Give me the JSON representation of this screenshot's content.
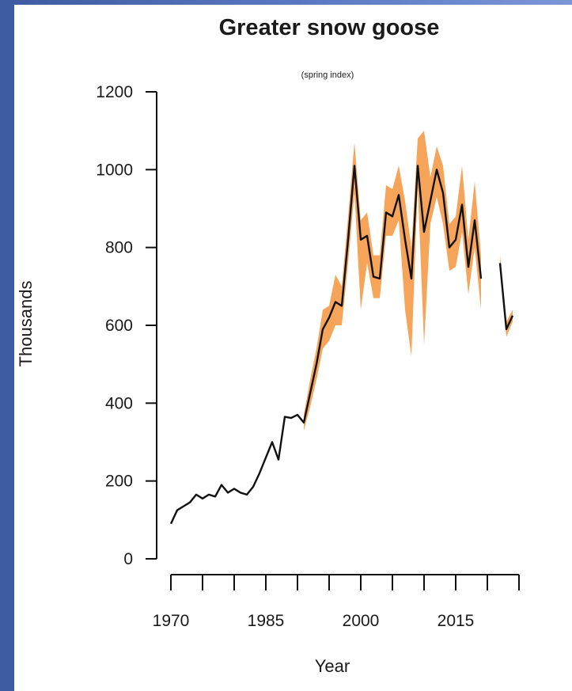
{
  "chart_data": {
    "type": "line",
    "title": "Greater snow goose",
    "subtitle": "(spring index)",
    "xlabel": "Year",
    "ylabel": "Thousands",
    "xlim": [
      1970,
      2023
    ],
    "ylim": [
      0,
      1200
    ],
    "y_ticks": [
      0,
      200,
      400,
      600,
      800,
      1000,
      1200
    ],
    "x_ticks": [
      1970,
      1975,
      1980,
      1985,
      1990,
      1995,
      2000,
      2005,
      2010,
      2015,
      2020,
      2025
    ],
    "x_tick_labels": [
      {
        "x": 1970,
        "label": "1970"
      },
      {
        "x": 1985,
        "label": "1985"
      },
      {
        "x": 2000,
        "label": "2000"
      },
      {
        "x": 2015,
        "label": "2015"
      }
    ],
    "grid": false,
    "colors": {
      "line": "#111111",
      "band": "#f6a45a"
    },
    "series": [
      {
        "values": [
          [
            1970,
            90
          ],
          [
            1971,
            125
          ],
          [
            1972,
            135
          ],
          [
            1973,
            145
          ],
          [
            1974,
            165
          ],
          [
            1975,
            155
          ],
          [
            1976,
            165
          ],
          [
            1977,
            160
          ],
          [
            1978,
            190
          ],
          [
            1979,
            170
          ],
          [
            1980,
            180
          ],
          [
            1981,
            170
          ],
          [
            1982,
            165
          ],
          [
            1983,
            185
          ],
          [
            1984,
            220
          ],
          [
            1985,
            260
          ],
          [
            1986,
            300
          ],
          [
            1987,
            255
          ],
          [
            1988,
            365
          ],
          [
            1989,
            362
          ],
          [
            1990,
            370
          ],
          [
            1991,
            350
          ],
          [
            1992,
            425
          ],
          [
            1993,
            500
          ],
          [
            1994,
            590
          ],
          [
            1995,
            620
          ],
          [
            1996,
            660
          ],
          [
            1997,
            650
          ],
          [
            1998,
            820
          ],
          [
            1999,
            1010
          ],
          [
            2000,
            820
          ],
          [
            2001,
            830
          ],
          [
            2002,
            725
          ],
          [
            2003,
            720
          ],
          [
            2004,
            890
          ],
          [
            2005,
            880
          ],
          [
            2006,
            935
          ],
          [
            2007,
            820
          ],
          [
            2008,
            720
          ],
          [
            2009,
            1010
          ],
          [
            2010,
            840
          ],
          [
            2011,
            920
          ],
          [
            2012,
            1000
          ],
          [
            2013,
            940
          ],
          [
            2014,
            800
          ],
          [
            2015,
            820
          ],
          [
            2016,
            910
          ],
          [
            2017,
            750
          ],
          [
            2018,
            870
          ],
          [
            2019,
            720
          ],
          [
            2022,
            760
          ],
          [
            2023,
            590
          ],
          [
            2024,
            625
          ]
        ]
      }
    ],
    "confidence_band": {
      "x": [
        1991,
        1992,
        1993,
        1994,
        1995,
        1996,
        1997,
        1998,
        1999,
        2000,
        2001,
        2002,
        2003,
        2004,
        2005,
        2006,
        2007,
        2008,
        2009,
        2010,
        2011,
        2012,
        2013,
        2014,
        2015,
        2016,
        2017,
        2018,
        2019
      ],
      "lower": [
        330,
        390,
        460,
        540,
        560,
        600,
        600,
        760,
        940,
        640,
        760,
        670,
        670,
        830,
        830,
        870,
        640,
        520,
        960,
        550,
        860,
        930,
        860,
        740,
        750,
        840,
        680,
        800,
        640
      ],
      "upper": [
        370,
        460,
        540,
        640,
        650,
        730,
        700,
        880,
        1070,
        870,
        890,
        780,
        780,
        960,
        950,
        1010,
        920,
        800,
        1080,
        1100,
        980,
        1060,
        1010,
        860,
        880,
        1010,
        820,
        970,
        780
      ]
    },
    "late_band": {
      "x": [
        2022,
        2023,
        2024
      ],
      "lower": [
        740,
        570,
        610
      ],
      "upper": [
        780,
        610,
        640
      ]
    }
  }
}
